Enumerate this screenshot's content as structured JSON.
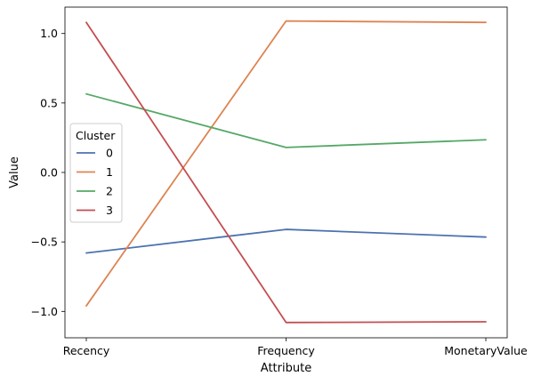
{
  "chart_data": {
    "type": "line",
    "categories": [
      "Recency",
      "Frequency",
      "MonetaryValue"
    ],
    "xlabel": "Attribute",
    "ylabel": "Value",
    "ylim": [
      -1.19,
      1.19
    ],
    "yticks": [
      -1.0,
      -0.5,
      0.0,
      0.5,
      1.0
    ],
    "ytick_labels": [
      "−1.0",
      "−0.5",
      "0.0",
      "0.5",
      "1.0"
    ],
    "grid": false,
    "legend": {
      "title": "Cluster",
      "placement": "center-left"
    },
    "series": [
      {
        "name": "0",
        "color": "#4c72b0",
        "values": [
          -0.58,
          -0.41,
          -0.465
        ]
      },
      {
        "name": "1",
        "color": "#dd8452",
        "values": [
          -0.96,
          1.09,
          1.08
        ]
      },
      {
        "name": "2",
        "color": "#55a868",
        "values": [
          0.565,
          0.18,
          0.235
        ]
      },
      {
        "name": "3",
        "color": "#c44e52",
        "values": [
          1.08,
          -1.08,
          -1.075
        ]
      }
    ]
  }
}
